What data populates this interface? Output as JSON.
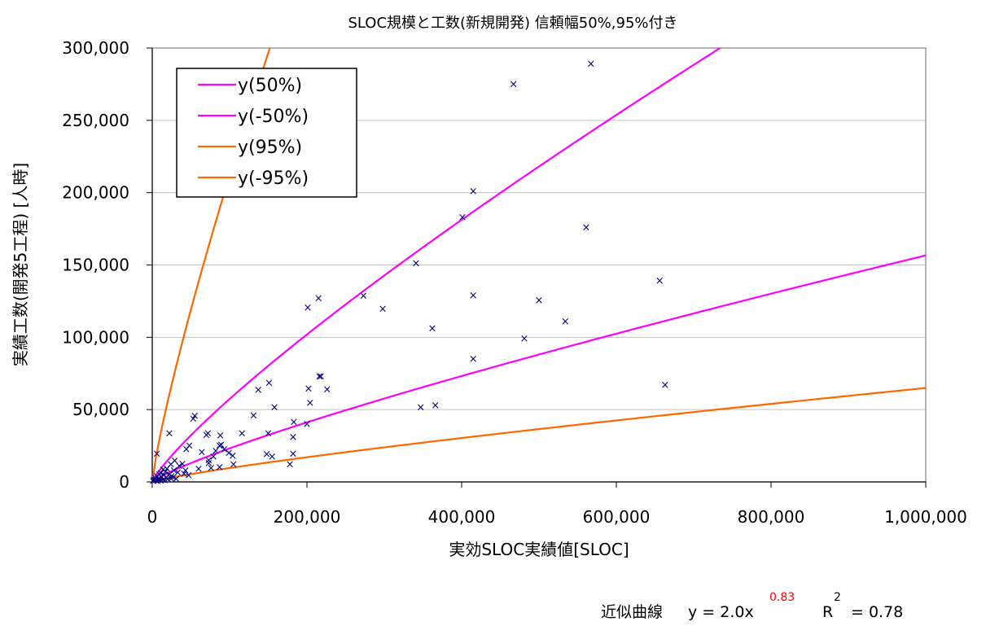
{
  "chart_data": {
    "type": "scatter",
    "title": "SLOC規模と工数(新規開発) 信頼幅50%,95%付き",
    "xlabel": "実効SLOC実績値[SLOC]",
    "ylabel": "実績工数(開発5工程) [人時]",
    "xlim": [
      0,
      1000000
    ],
    "ylim": [
      0,
      300000
    ],
    "x_ticks": [
      0,
      200000,
      400000,
      600000,
      800000,
      1000000
    ],
    "x_tick_labels": [
      "0",
      "200,000",
      "400,000",
      "600,000",
      "800,000",
      "1,000,000"
    ],
    "y_ticks": [
      0,
      50000,
      100000,
      150000,
      200000,
      250000,
      300000
    ],
    "y_tick_labels": [
      "0",
      "50,000",
      "100,000",
      "150,000",
      "200,000",
      "250,000",
      "300,000"
    ],
    "grid": "horizontal",
    "legend_position": "top-left",
    "marker_symbol": "×",
    "marker_color": "#000080",
    "curves": [
      {
        "name": "y(50%)",
        "color": "#ff00ff",
        "coef": 2.0,
        "exp": 0.83,
        "factor": 2.03
      },
      {
        "name": "y(-50%)",
        "color": "#ff00ff",
        "coef": 2.0,
        "exp": 0.83,
        "factor": 0.82
      },
      {
        "name": "y(95%)",
        "color": "#ff6600",
        "coef": 2.0,
        "exp": 0.83,
        "factor": 7.5
      },
      {
        "name": "y(-95%)",
        "color": "#ff6600",
        "coef": 2.0,
        "exp": 0.83,
        "factor": 0.34
      }
    ],
    "fit_equation": {
      "prefix": "近似曲線",
      "formula": "y = 2.0x",
      "exponent": "0.83",
      "r_label": "R",
      "r_sup": "2",
      "r_value": "= 0.78",
      "exponent_color": "#ff0000"
    },
    "points": [
      [
        567000,
        289000
      ],
      [
        467000,
        275000
      ],
      [
        415000,
        201000
      ],
      [
        401000,
        183000
      ],
      [
        561000,
        176000
      ],
      [
        341000,
        151000
      ],
      [
        656000,
        139000
      ],
      [
        273000,
        128500
      ],
      [
        415000,
        129000
      ],
      [
        215000,
        127000
      ],
      [
        500000,
        125500
      ],
      [
        201000,
        120500
      ],
      [
        298000,
        119500
      ],
      [
        534000,
        111000
      ],
      [
        362000,
        106000
      ],
      [
        481000,
        99000
      ],
      [
        415000,
        85000
      ],
      [
        218000,
        73000
      ],
      [
        216000,
        73000
      ],
      [
        151000,
        68500
      ],
      [
        663000,
        67000
      ],
      [
        202000,
        64500
      ],
      [
        137000,
        63500
      ],
      [
        226000,
        64000
      ],
      [
        204000,
        54500
      ],
      [
        366000,
        53000
      ],
      [
        347000,
        51500
      ],
      [
        158000,
        51500
      ],
      [
        55000,
        45500
      ],
      [
        53000,
        43500
      ],
      [
        131000,
        46000
      ],
      [
        183000,
        41500
      ],
      [
        200000,
        40000
      ],
      [
        22000,
        33500
      ],
      [
        72000,
        33500
      ],
      [
        70000,
        32500
      ],
      [
        88000,
        32000
      ],
      [
        150000,
        33500
      ],
      [
        116000,
        33500
      ],
      [
        182000,
        31000
      ],
      [
        87000,
        25000
      ],
      [
        89000,
        25500
      ],
      [
        93000,
        22500
      ],
      [
        48000,
        25000
      ],
      [
        44000,
        22500
      ],
      [
        82000,
        21500
      ],
      [
        64000,
        20500
      ],
      [
        148000,
        19000
      ],
      [
        182000,
        19500
      ],
      [
        6000,
        19500
      ],
      [
        99000,
        20000
      ],
      [
        104000,
        18000
      ],
      [
        155000,
        17500
      ],
      [
        79000,
        17500
      ],
      [
        73000,
        15000
      ],
      [
        105000,
        12000
      ],
      [
        73000,
        13000
      ],
      [
        29000,
        14500
      ],
      [
        39000,
        12500
      ],
      [
        24000,
        12000
      ],
      [
        35000,
        11000
      ],
      [
        178000,
        12000
      ],
      [
        87000,
        10000
      ],
      [
        76000,
        9500
      ],
      [
        60000,
        9000
      ],
      [
        43000,
        8000
      ],
      [
        28000,
        8000
      ],
      [
        19000,
        9000
      ],
      [
        14000,
        8500
      ],
      [
        17000,
        7000
      ],
      [
        11000,
        6000
      ],
      [
        33000,
        6500
      ],
      [
        41000,
        5500
      ],
      [
        22000,
        5000
      ],
      [
        9000,
        5000
      ],
      [
        15000,
        4500
      ],
      [
        25000,
        4000
      ],
      [
        47000,
        4500
      ],
      [
        6000,
        4000
      ],
      [
        12000,
        3500
      ],
      [
        18000,
        3000
      ],
      [
        27000,
        3000
      ],
      [
        4000,
        2500
      ],
      [
        8000,
        2000
      ],
      [
        10000,
        1500
      ],
      [
        14000,
        1500
      ],
      [
        3000,
        1500
      ],
      [
        20000,
        2000
      ],
      [
        5000,
        1000
      ],
      [
        2000,
        1000
      ],
      [
        7000,
        500
      ],
      [
        11000,
        800
      ],
      [
        1000,
        500
      ],
      [
        16000,
        1000
      ],
      [
        24000,
        2500
      ],
      [
        31000,
        2000
      ]
    ]
  }
}
